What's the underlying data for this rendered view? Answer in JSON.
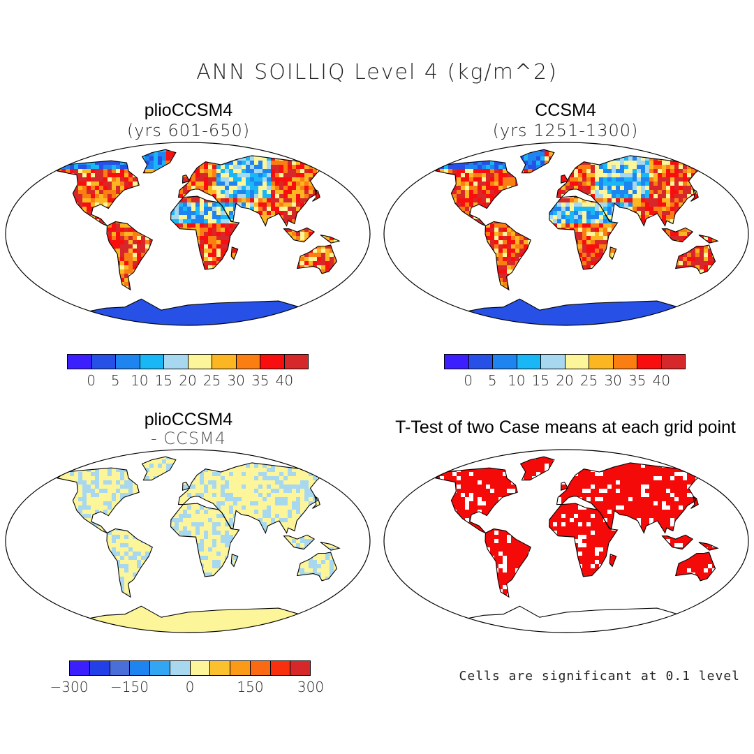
{
  "chart_data": {
    "type": "heatmap",
    "title": "ANN SOILLIQ Level 4 (kg/m^2)",
    "panels": [
      {
        "id": "plio",
        "title": "plioCCSM4",
        "subtitle": "(yrs 601-650)",
        "colorbar": {
          "colors": [
            "#3b1fff",
            "#2650e6",
            "#1d84f0",
            "#19b7f5",
            "#a8d8f0",
            "#fdf59a",
            "#fbb622",
            "#fb7e13",
            "#f80e0e",
            "#d6282b"
          ],
          "ticks": [
            "0",
            "5",
            "10",
            "15",
            "20",
            "25",
            "30",
            "35",
            "40"
          ]
        }
      },
      {
        "id": "ccsm4",
        "title": "CCSM4",
        "subtitle": "(yrs 1251-1300)",
        "colorbar": {
          "colors": [
            "#3b1fff",
            "#2650e6",
            "#1d84f0",
            "#19b7f5",
            "#a8d8f0",
            "#fdf59a",
            "#fbb622",
            "#fb7e13",
            "#f80e0e",
            "#d6282b"
          ],
          "ticks": [
            "0",
            "5",
            "10",
            "15",
            "20",
            "25",
            "30",
            "35",
            "40"
          ]
        }
      },
      {
        "id": "diff",
        "title": "plioCCSM4",
        "subtitle": "- CCSM4",
        "colorbar": {
          "colors": [
            "#3b1fff",
            "#2340e8",
            "#4a6fd8",
            "#1d84f0",
            "#32a6f2",
            "#a8d8f0",
            "#fdf59a",
            "#fbc02d",
            "#fb9a16",
            "#fb6a12",
            "#f8300e",
            "#d6282b"
          ],
          "ticks": [
            "-300",
            "-150",
            "0",
            "150",
            "300"
          ]
        }
      },
      {
        "id": "ttest",
        "title": "T-Test of two Case means at each grid point",
        "note": "Cells are significant at 0.1 level"
      }
    ]
  }
}
